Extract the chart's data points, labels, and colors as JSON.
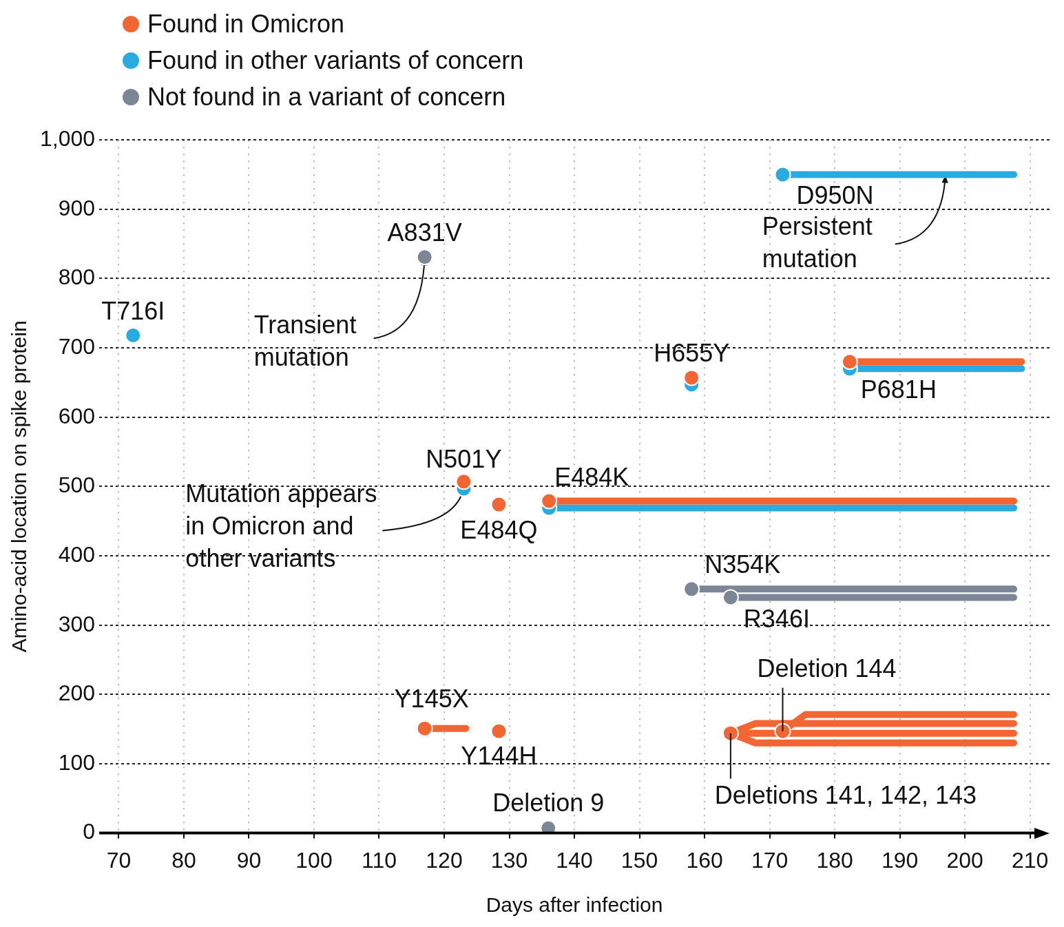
{
  "chart_data": {
    "type": "scatter",
    "xlabel": "Days after infection",
    "ylabel": "Amino-acid location on spike protein",
    "xlim": [
      67,
      213
    ],
    "xticks": [
      70,
      80,
      90,
      100,
      110,
      120,
      130,
      140,
      150,
      160,
      170,
      180,
      190,
      200,
      210
    ],
    "ylim": [
      0,
      1000
    ],
    "yticks": [
      0,
      100,
      200,
      300,
      400,
      500,
      600,
      700,
      800,
      900,
      {
        "value": 1000,
        "label": "1,000"
      }
    ],
    "grid": true,
    "legend": "top left",
    "marker": "circle",
    "series": [
      {
        "name": "Found in Omicron",
        "color": "#f26633",
        "type": "scatter",
        "x": [
          117,
          128.4,
          164,
          172,
          128.4,
          123,
          136.1,
          158,
          182.3
        ],
        "values": [
          151,
          147,
          144,
          147,
          474,
          507,
          479,
          657,
          680
        ]
      },
      {
        "name": "Found in other variants of concern",
        "color": "#29abe2",
        "type": "scatter",
        "x": [
          72.2,
          172,
          123,
          136.1,
          158,
          182.3
        ],
        "values": [
          718,
          950,
          497,
          469,
          647,
          670
        ]
      },
      {
        "name": "Not found in a variant of concern",
        "color": "#7d8694",
        "type": "scatter",
        "x": [
          117,
          158,
          164,
          136
        ],
        "values": [
          831,
          352,
          340,
          7
        ]
      },
      {
        "color": "#29abe2",
        "type": "line",
        "marker": "none",
        "x": [
          172,
          207.5
        ],
        "values": [
          950,
          950
        ]
      },
      {
        "color": "#f26633",
        "type": "line",
        "marker": "none",
        "x": [
          182.3,
          208.7
        ],
        "values": [
          680,
          680
        ]
      },
      {
        "color": "#29abe2",
        "type": "line",
        "marker": "none",
        "x": [
          182.3,
          208.7
        ],
        "values": [
          670,
          670
        ]
      },
      {
        "color": "#f26633",
        "type": "line",
        "marker": "none",
        "x": [
          136.1,
          207.5
        ],
        "values": [
          479,
          479
        ]
      },
      {
        "color": "#29abe2",
        "type": "line",
        "marker": "none",
        "x": [
          136.1,
          207.5
        ],
        "values": [
          469,
          469
        ]
      },
      {
        "color": "#7d8694",
        "type": "line",
        "marker": "none",
        "x": [
          158,
          207.5
        ],
        "values": [
          352,
          352
        ]
      },
      {
        "color": "#7d8694",
        "type": "line",
        "marker": "none",
        "x": [
          164,
          207.5
        ],
        "values": [
          340,
          340
        ]
      },
      {
        "color": "#f26633",
        "type": "line",
        "marker": "none",
        "x": [
          117,
          123.3
        ],
        "values": [
          151,
          151
        ]
      },
      {
        "color": "#f26633",
        "type": "line",
        "marker": "none",
        "x": [
          164,
          167.8,
          207.5
        ],
        "values": [
          144,
          158,
          158
        ]
      },
      {
        "color": "#f26633",
        "type": "line",
        "marker": "none",
        "x": [
          164,
          207.5
        ],
        "values": [
          144,
          144
        ]
      },
      {
        "color": "#f26633",
        "type": "line",
        "marker": "none",
        "x": [
          164,
          167.8,
          207.5
        ],
        "values": [
          144,
          130,
          130
        ]
      },
      {
        "color": "#f26633",
        "type": "line",
        "marker": "none",
        "x": [
          172,
          175.5,
          207.5
        ],
        "values": [
          147,
          171,
          171
        ]
      }
    ],
    "annotations": [
      {
        "text": "T716I",
        "x": 72.2,
        "y": 718
      },
      {
        "text": "A831V",
        "x": 117,
        "y": 831
      },
      {
        "text": "D950N",
        "x": 172,
        "y": 950
      },
      {
        "text": "H655Y",
        "x": 158,
        "y": 652
      },
      {
        "text": "P681H",
        "x": 182.3,
        "y": 675
      },
      {
        "text": "N501Y",
        "x": 123,
        "y": 502
      },
      {
        "text": "E484Q",
        "x": 128.4,
        "y": 474
      },
      {
        "text": "E484K",
        "x": 136.1,
        "y": 474
      },
      {
        "text": "N354K",
        "x": 158,
        "y": 352
      },
      {
        "text": "R346I",
        "x": 164,
        "y": 340
      },
      {
        "text": "Y145X",
        "x": 117,
        "y": 151
      },
      {
        "text": "Y144H",
        "x": 128.4,
        "y": 147
      },
      {
        "text": "Deletion 9",
        "x": 136,
        "y": 7
      },
      {
        "text": "Deletion 144",
        "x": 172,
        "y": 147
      },
      {
        "text": "Deletions 141, 142, 143",
        "x": 164,
        "y": 144
      },
      {
        "text": "Transient\nmutation",
        "x": 117,
        "y": 831
      },
      {
        "text": "Persistent\nmutation",
        "x": 197,
        "y": 950
      },
      {
        "text": "Mutation appears\nin Omicron and\nother variants",
        "x": 123,
        "y": 502
      }
    ]
  }
}
